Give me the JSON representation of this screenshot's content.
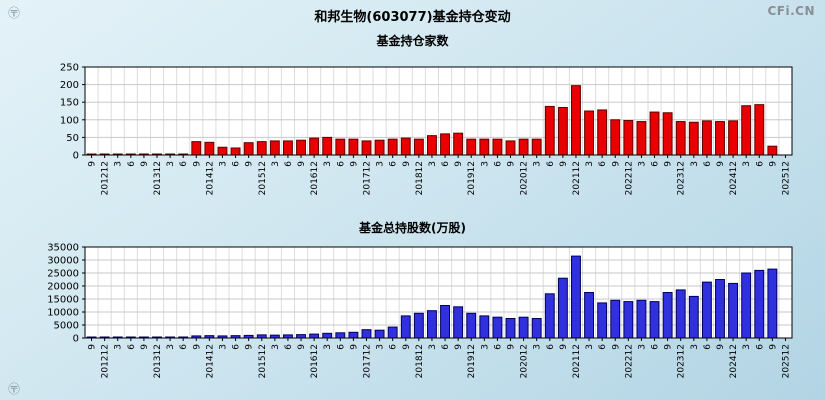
{
  "page": {
    "brand": "CFi.CN",
    "watermark_icon": "〶",
    "title": "和邦生物(603077)基金持仓变动"
  },
  "chart_data": [
    {
      "type": "bar",
      "title": "基金持仓家数",
      "xlabel": "",
      "ylabel": "",
      "ylim": [
        0,
        250
      ],
      "yticks": [
        0,
        50,
        100,
        150,
        200,
        250
      ],
      "grid": true,
      "xtick_rotation": 90,
      "legend": "none",
      "bar_fill": "#e80000",
      "bar_border": "#600000",
      "categories": [
        "9",
        "201212",
        "3",
        "6",
        "9",
        "201312",
        "3",
        "6",
        "9",
        "201412",
        "3",
        "6",
        "9",
        "201512",
        "3",
        "6",
        "9",
        "201612",
        "3",
        "6",
        "9",
        "201712",
        "3",
        "6",
        "9",
        "201812",
        "3",
        "6",
        "9",
        "201912",
        "3",
        "6",
        "9",
        "202012",
        "3",
        "6",
        "9",
        "202112",
        "3",
        "6",
        "9",
        "202212",
        "3",
        "6",
        "9",
        "202312",
        "3",
        "6",
        "9",
        "202412",
        "3",
        "6",
        "9",
        "202512"
      ],
      "values": [
        2,
        2,
        1,
        1,
        1,
        1,
        1,
        2,
        38,
        36,
        22,
        20,
        35,
        38,
        40,
        40,
        42,
        48,
        50,
        45,
        45,
        40,
        42,
        45,
        48,
        45,
        55,
        60,
        62,
        45,
        45,
        45,
        40,
        45,
        45,
        138,
        135,
        197,
        125,
        128,
        100,
        98,
        95,
        122,
        120,
        95,
        93,
        97,
        95,
        97,
        140,
        143,
        25,
        0
      ]
    },
    {
      "type": "bar",
      "title": "基金总持股数(万股)",
      "xlabel": "",
      "ylabel": "",
      "ylim": [
        0,
        35000
      ],
      "yticks": [
        0,
        5000,
        10000,
        15000,
        20000,
        25000,
        30000,
        35000
      ],
      "grid": true,
      "xtick_rotation": 90,
      "legend": "none",
      "bar_fill": "#3030dd",
      "bar_border": "#000060",
      "categories": [
        "9",
        "201212",
        "3",
        "6",
        "9",
        "201312",
        "3",
        "6",
        "9",
        "201412",
        "3",
        "6",
        "9",
        "201512",
        "3",
        "6",
        "9",
        "201612",
        "3",
        "6",
        "9",
        "201712",
        "3",
        "6",
        "9",
        "201812",
        "3",
        "6",
        "9",
        "201912",
        "3",
        "6",
        "9",
        "202012",
        "3",
        "6",
        "9",
        "202112",
        "3",
        "6",
        "9",
        "202212",
        "3",
        "6",
        "9",
        "202312",
        "3",
        "6",
        "9",
        "202412",
        "3",
        "6",
        "9",
        "202512"
      ],
      "values": [
        300,
        300,
        200,
        200,
        250,
        300,
        250,
        300,
        800,
        900,
        800,
        900,
        1000,
        1200,
        1100,
        1200,
        1300,
        1500,
        1800,
        2000,
        2200,
        3200,
        3000,
        4200,
        8500,
        9500,
        10500,
        12500,
        12000,
        9500,
        8500,
        8000,
        7500,
        8000,
        7500,
        17000,
        23000,
        31500,
        17500,
        13500,
        14500,
        14000,
        14500,
        14000,
        17500,
        18500,
        16000,
        21500,
        22500,
        21000,
        25000,
        26000,
        26500,
        0
      ]
    }
  ]
}
